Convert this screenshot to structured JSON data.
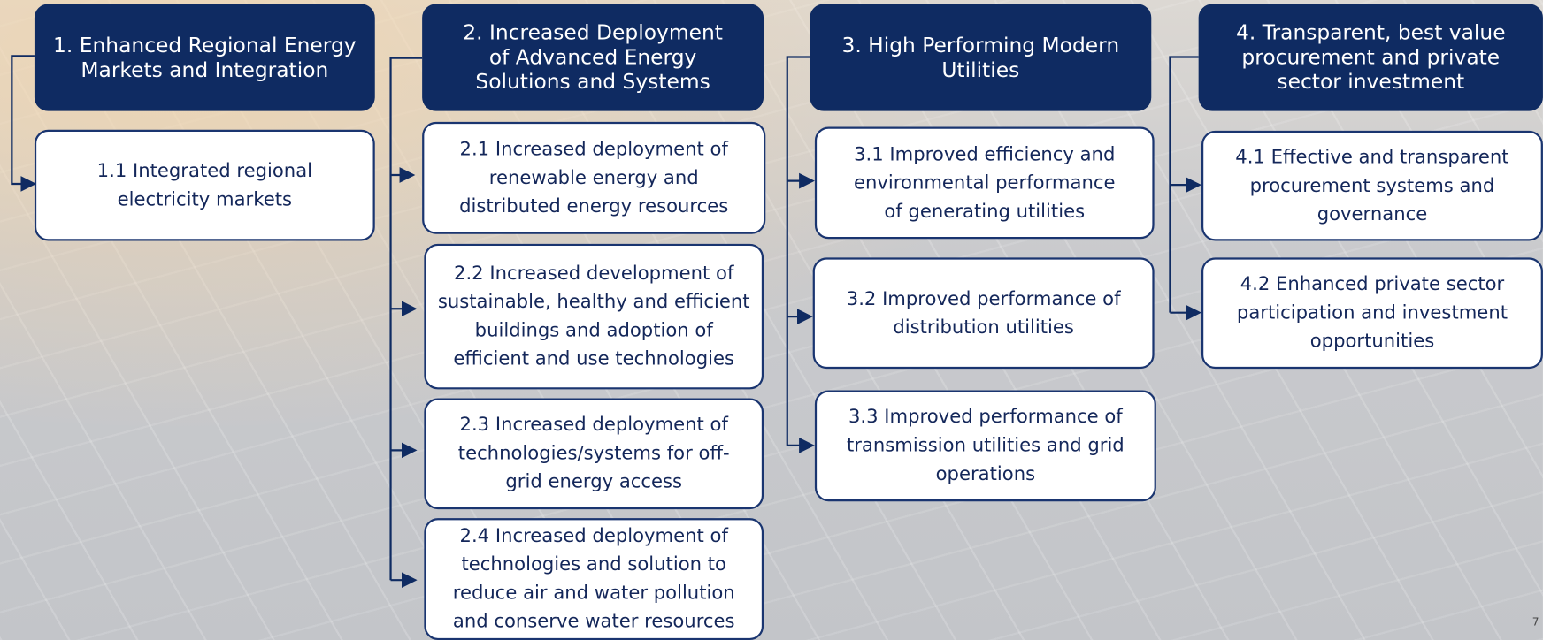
{
  "columns": [
    {
      "header": {
        "lines": [
          "1.  Enhanced Regional Energy",
          "Markets and Integration"
        ]
      },
      "items": [
        {
          "lines": [
            "1.1 Integrated regional",
            "electricity markets"
          ]
        }
      ]
    },
    {
      "header": {
        "lines": [
          "2. Increased Deployment",
          "of Advanced Energy",
          "Solutions and Systems"
        ]
      },
      "items": [
        {
          "lines": [
            "2.1 Increased deployment of",
            "renewable energy and",
            "distributed energy resources"
          ]
        },
        {
          "lines": [
            "2.2 Increased development of",
            "sustainable, healthy and efficient",
            "buildings and adoption of",
            "efficient and use technologies"
          ]
        },
        {
          "lines": [
            "2.3 Increased deployment of",
            "technologies/systems for off-",
            "grid energy access"
          ]
        },
        {
          "lines": [
            "2.4 Increased deployment of",
            "technologies and solution to",
            "reduce air and water pollution",
            "and conserve water resources"
          ]
        }
      ]
    },
    {
      "header": {
        "lines": [
          "3.  High Performing Modern",
          "Utilities"
        ]
      },
      "items": [
        {
          "lines": [
            "3.1 Improved efficiency and",
            "environmental performance",
            "of generating utilities"
          ]
        },
        {
          "lines": [
            "3.2 Improved performance of",
            "distribution utilities"
          ]
        },
        {
          "lines": [
            "3.3 Improved performance of",
            "transmission utilities and grid",
            "operations"
          ]
        }
      ]
    },
    {
      "header": {
        "lines": [
          "4.  Transparent, best value",
          "procurement and private",
          "sector investment"
        ]
      },
      "items": [
        {
          "lines": [
            "4.1 Effective and transparent",
            "procurement systems and",
            "governance"
          ]
        },
        {
          "lines": [
            "4.2 Enhanced private sector",
            "participation and investment",
            "opportunities"
          ]
        }
      ]
    }
  ],
  "page_number": "7"
}
